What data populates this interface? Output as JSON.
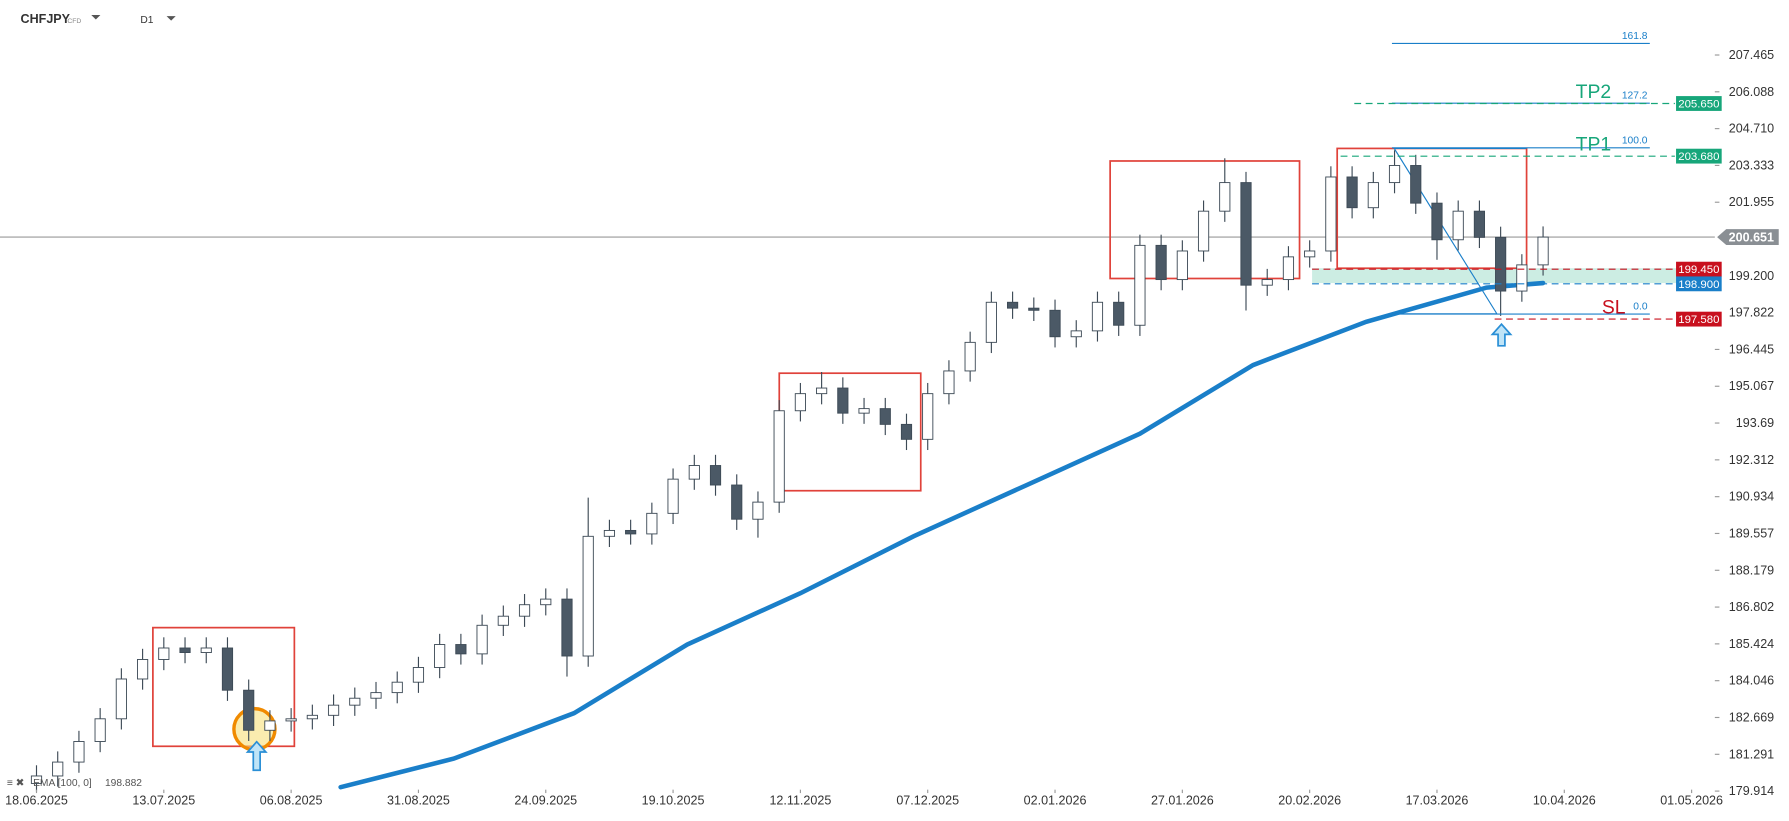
{
  "header": {
    "symbol": "CHFJPY",
    "instrument": "CFD",
    "timeframe": "D1"
  },
  "chart_data": {
    "type": "candlestick",
    "x": [
      0,
      3,
      6,
      9,
      12,
      15,
      18,
      21,
      24,
      27,
      30,
      33,
      36,
      39,
      42,
      45,
      48,
      51,
      54,
      57,
      60,
      63,
      66,
      69,
      72,
      75,
      78,
      81,
      84,
      87,
      90,
      93,
      96,
      99,
      102,
      105,
      108,
      111,
      114,
      117,
      120,
      123,
      126,
      129,
      132,
      135,
      138,
      141,
      144,
      147,
      150,
      153,
      156,
      159,
      162,
      165,
      168,
      171,
      174,
      177,
      180,
      183,
      186,
      189,
      192,
      195,
      198,
      201,
      204,
      207,
      210,
      213
    ],
    "open": [
      180.2,
      180.48,
      181.0,
      181.77,
      182.62,
      184.11,
      184.84,
      185.27,
      185.1,
      185.27,
      183.69,
      182.19,
      182.54,
      182.62,
      182.75,
      183.13,
      183.39,
      183.6,
      183.99,
      184.54,
      185.4,
      185.05,
      186.12,
      186.46,
      186.89,
      187.1,
      184.97,
      189.45,
      189.67,
      189.54,
      190.31,
      191.59,
      192.1,
      191.37,
      190.09,
      190.73,
      194.15,
      194.79,
      195.0,
      194.06,
      194.23,
      193.64,
      193.08,
      194.79,
      195.64,
      196.71,
      198.21,
      197.99,
      197.91,
      196.92,
      197.14,
      198.21,
      197.35,
      200.34,
      199.06,
      200.13,
      201.62,
      202.69,
      198.85,
      199.06,
      199.91,
      200.13,
      202.9,
      201.75,
      202.69,
      203.33,
      201.92,
      200.55,
      201.62,
      200.64,
      198.63,
      199.61
    ],
    "high": [
      180.88,
      181.4,
      182.17,
      183.02,
      184.51,
      185.24,
      185.67,
      185.67,
      185.67,
      185.67,
      184.09,
      182.94,
      183.02,
      183.15,
      183.53,
      183.79,
      184.0,
      184.39,
      184.94,
      185.8,
      185.8,
      186.52,
      186.86,
      187.29,
      187.5,
      187.5,
      190.9,
      190.07,
      190.07,
      190.71,
      191.99,
      192.5,
      192.5,
      191.77,
      191.13,
      194.55,
      195.19,
      195.6,
      195.4,
      194.63,
      194.63,
      194.04,
      195.19,
      196.04,
      197.11,
      198.61,
      198.61,
      198.39,
      198.31,
      197.54,
      198.61,
      198.61,
      200.74,
      200.74,
      200.53,
      202.02,
      203.6,
      203.09,
      199.46,
      200.31,
      200.53,
      203.3,
      203.3,
      203.09,
      203.9,
      203.73,
      202.32,
      202.02,
      202.02,
      201.04,
      200.01,
      201.05
    ],
    "low": [
      179.9,
      180.08,
      180.6,
      181.37,
      182.22,
      183.71,
      184.44,
      184.7,
      184.7,
      183.29,
      181.79,
      181.79,
      182.14,
      182.22,
      182.35,
      182.73,
      182.99,
      183.2,
      183.59,
      184.14,
      184.65,
      184.65,
      185.72,
      186.06,
      186.49,
      184.2,
      184.57,
      189.05,
      189.14,
      189.14,
      189.91,
      191.19,
      190.97,
      189.69,
      189.4,
      190.33,
      193.75,
      194.39,
      193.66,
      193.66,
      193.24,
      192.68,
      192.68,
      194.39,
      195.24,
      196.31,
      197.59,
      197.51,
      196.52,
      196.52,
      196.74,
      196.95,
      196.95,
      198.66,
      198.66,
      199.73,
      201.22,
      197.9,
      198.45,
      198.66,
      199.51,
      199.73,
      201.35,
      201.35,
      202.29,
      201.52,
      199.8,
      200.15,
      200.24,
      197.7,
      198.23,
      199.21
    ],
    "close": [
      180.48,
      181.0,
      181.77,
      182.62,
      184.11,
      184.84,
      185.27,
      185.1,
      185.27,
      183.69,
      182.19,
      182.54,
      182.62,
      182.75,
      183.13,
      183.39,
      183.6,
      183.99,
      184.54,
      185.4,
      185.05,
      186.12,
      186.46,
      186.89,
      187.1,
      184.97,
      189.45,
      189.67,
      189.54,
      190.31,
      191.59,
      192.1,
      191.37,
      190.09,
      190.73,
      194.15,
      194.79,
      195.0,
      194.06,
      194.23,
      193.64,
      193.08,
      194.79,
      195.64,
      196.71,
      198.21,
      197.99,
      197.91,
      196.92,
      197.14,
      198.21,
      197.35,
      200.34,
      199.06,
      200.13,
      201.62,
      202.69,
      198.85,
      199.06,
      199.91,
      200.13,
      202.9,
      201.75,
      202.69,
      203.33,
      201.92,
      200.55,
      201.62,
      200.64,
      198.63,
      199.61,
      200.65
    ],
    "up_color": "#ffffff",
    "down_color": "#4b5966",
    "outline_color": "#3d4a56",
    "ema": {
      "label": "EMA [100, 0]",
      "last": 198.882,
      "color": "#1a7fc9",
      "x": [
        43,
        59,
        76,
        92,
        108,
        124,
        140,
        156,
        172,
        188,
        205,
        213
      ],
      "values": [
        180.06,
        181.13,
        182.83,
        185.4,
        187.32,
        189.45,
        191.37,
        193.29,
        195.86,
        197.48,
        198.76,
        198.93
      ]
    },
    "current_price": 200.651,
    "xlim": [
      -5.16,
      236.8
    ],
    "xticks": [
      {
        "value": 0,
        "label": "18.06.2025"
      },
      {
        "value": 18,
        "label": "13.07.2025"
      },
      {
        "value": 36,
        "label": "06.08.2025"
      },
      {
        "value": 54,
        "label": "31.08.2025"
      },
      {
        "value": 72,
        "label": "24.09.2025"
      },
      {
        "value": 90,
        "label": "19.10.2025"
      },
      {
        "value": 108,
        "label": "12.11.2025"
      },
      {
        "value": 126,
        "label": "07.12.2025"
      },
      {
        "value": 144,
        "label": "02.01.2026"
      },
      {
        "value": 162,
        "label": "27.01.2026"
      },
      {
        "value": 180,
        "label": "20.02.2026"
      },
      {
        "value": 198,
        "label": "17.03.2026"
      },
      {
        "value": 216,
        "label": "10.04.2026"
      },
      {
        "value": 234,
        "label": "01.05.2026"
      }
    ],
    "ylim": [
      179.84,
      209.52
    ],
    "yticks": [
      {
        "value": 179.914,
        "label": "179.914"
      },
      181.291,
      182.669,
      184.046,
      185.424,
      186.802,
      188.179,
      189.557,
      190.934,
      192.312,
      193.69,
      195.067,
      196.445,
      197.822,
      {
        "value": 199.2,
        "label": "199.200"
      },
      201.955,
      203.333,
      {
        "value": 204.71,
        "label": "204.710"
      },
      206.088,
      207.465
    ],
    "levels": [
      {
        "name": "TP2",
        "price": {
          "value": 205.65,
          "label": "205.650"
        },
        "color": "#17a67a"
      },
      {
        "name": "TP1",
        "price": {
          "value": 203.68,
          "label": "203.680"
        },
        "color": "#17a67a"
      },
      {
        "price": {
          "value": 199.45,
          "label": "199.450"
        },
        "color": "#c8101e"
      },
      {
        "price": {
          "value": 198.9,
          "label": "198.900"
        },
        "color": "#1a7fc9"
      },
      {
        "name": "SL",
        "price": {
          "value": 197.58,
          "label": "197.580"
        },
        "color": "#c8101e"
      }
    ],
    "fib": [
      {
        "level": "161.8",
        "price": 207.9
      },
      {
        "level": "127.2",
        "price": 205.66
      },
      {
        "level": "100.0",
        "price": 203.99
      },
      {
        "level": "0.0",
        "price": 197.77
      }
    ]
  }
}
